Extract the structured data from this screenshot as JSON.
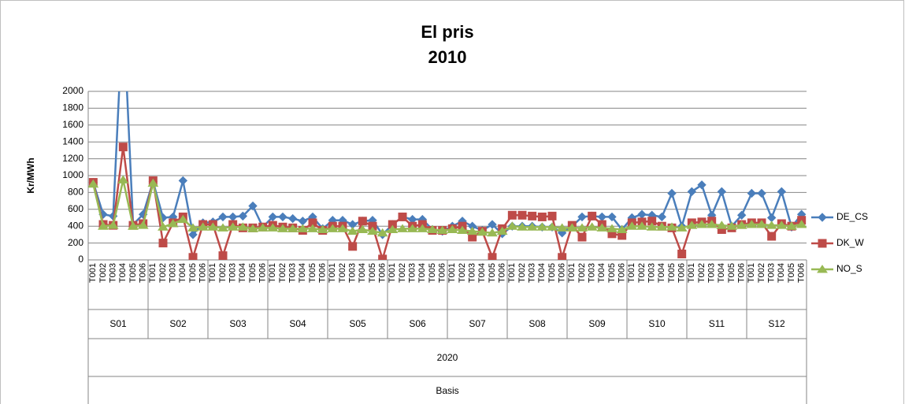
{
  "chart_data": {
    "type": "line",
    "title": "El pris",
    "subtitle": "2010",
    "y_label": "Kr/MWh",
    "categories": [
      "T001",
      "T002",
      "T003",
      "T004",
      "T005",
      "T006",
      "T001",
      "T002",
      "T003",
      "T004",
      "T005",
      "T006",
      "T001",
      "T002",
      "T003",
      "T004",
      "T005",
      "T006",
      "T001",
      "T002",
      "T003",
      "T004",
      "T005",
      "T006",
      "T001",
      "T002",
      "T003",
      "T004",
      "T005",
      "T006",
      "T001",
      "T002",
      "T003",
      "T004",
      "T005",
      "T006",
      "T001",
      "T002",
      "T003",
      "T004",
      "T005",
      "T006",
      "T001",
      "T002",
      "T003",
      "T004",
      "T005",
      "T006",
      "T001",
      "T002",
      "T003",
      "T004",
      "T005",
      "T006",
      "T001",
      "T002",
      "T003",
      "T004",
      "T005",
      "T006",
      "T001",
      "T002",
      "T003",
      "T004",
      "T005",
      "T006",
      "T001",
      "T002",
      "T003",
      "T004",
      "T005",
      "T006"
    ],
    "category_groups": [
      "S01",
      "S02",
      "S03",
      "S04",
      "S05",
      "S06",
      "S07",
      "S08",
      "S09",
      "S10",
      "S11",
      "S12"
    ],
    "outer_group": "2020",
    "outermost_group": "Basis",
    "series": [
      {
        "name": "DE_CS",
        "color": "#4a7ebb",
        "marker": "diamond",
        "values": [
          920,
          540,
          520,
          3000,
          420,
          540,
          930,
          500,
          510,
          940,
          300,
          440,
          450,
          510,
          510,
          520,
          640,
          390,
          510,
          510,
          490,
          460,
          510,
          370,
          470,
          470,
          420,
          460,
          470,
          300,
          420,
          510,
          480,
          480,
          360,
          340,
          400,
          460,
          400,
          350,
          420,
          310,
          400,
          400,
          400,
          390,
          390,
          320,
          400,
          510,
          520,
          510,
          510,
          360,
          500,
          540,
          530,
          510,
          790,
          400,
          810,
          890,
          530,
          810,
          400,
          530,
          790,
          790,
          500,
          810,
          390,
          540
        ]
      },
      {
        "name": "DK_W",
        "color": "#be4b48",
        "marker": "square",
        "values": [
          920,
          420,
          410,
          1340,
          410,
          430,
          940,
          200,
          440,
          510,
          30,
          420,
          420,
          50,
          420,
          380,
          380,
          390,
          410,
          390,
          380,
          350,
          440,
          350,
          400,
          400,
          160,
          460,
          400,
          10,
          420,
          510,
          400,
          420,
          350,
          350,
          370,
          400,
          270,
          340,
          30,
          370,
          530,
          530,
          520,
          510,
          520,
          30,
          410,
          270,
          520,
          420,
          310,
          290,
          440,
          450,
          460,
          400,
          380,
          70,
          440,
          450,
          460,
          360,
          380,
          420,
          440,
          440,
          280,
          430,
          400,
          470
        ]
      },
      {
        "name": "NO_S",
        "color": "#98b954",
        "marker": "triangle",
        "values": [
          900,
          400,
          410,
          950,
          400,
          410,
          910,
          390,
          430,
          480,
          380,
          390,
          390,
          380,
          390,
          390,
          370,
          380,
          380,
          370,
          370,
          370,
          370,
          360,
          370,
          370,
          340,
          360,
          340,
          320,
          360,
          370,
          370,
          370,
          360,
          350,
          360,
          350,
          340,
          330,
          320,
          340,
          400,
          390,
          390,
          390,
          390,
          380,
          380,
          380,
          390,
          380,
          370,
          360,
          400,
          400,
          390,
          390,
          390,
          380,
          410,
          420,
          420,
          410,
          400,
          410,
          420,
          420,
          410,
          410,
          400,
          420
        ]
      }
    ],
    "ylim": [
      0,
      2000
    ],
    "yticks": [
      0,
      200,
      400,
      600,
      800,
      1000,
      1200,
      1400,
      1600,
      1800,
      2000
    ],
    "grid": true,
    "legend": "right"
  }
}
